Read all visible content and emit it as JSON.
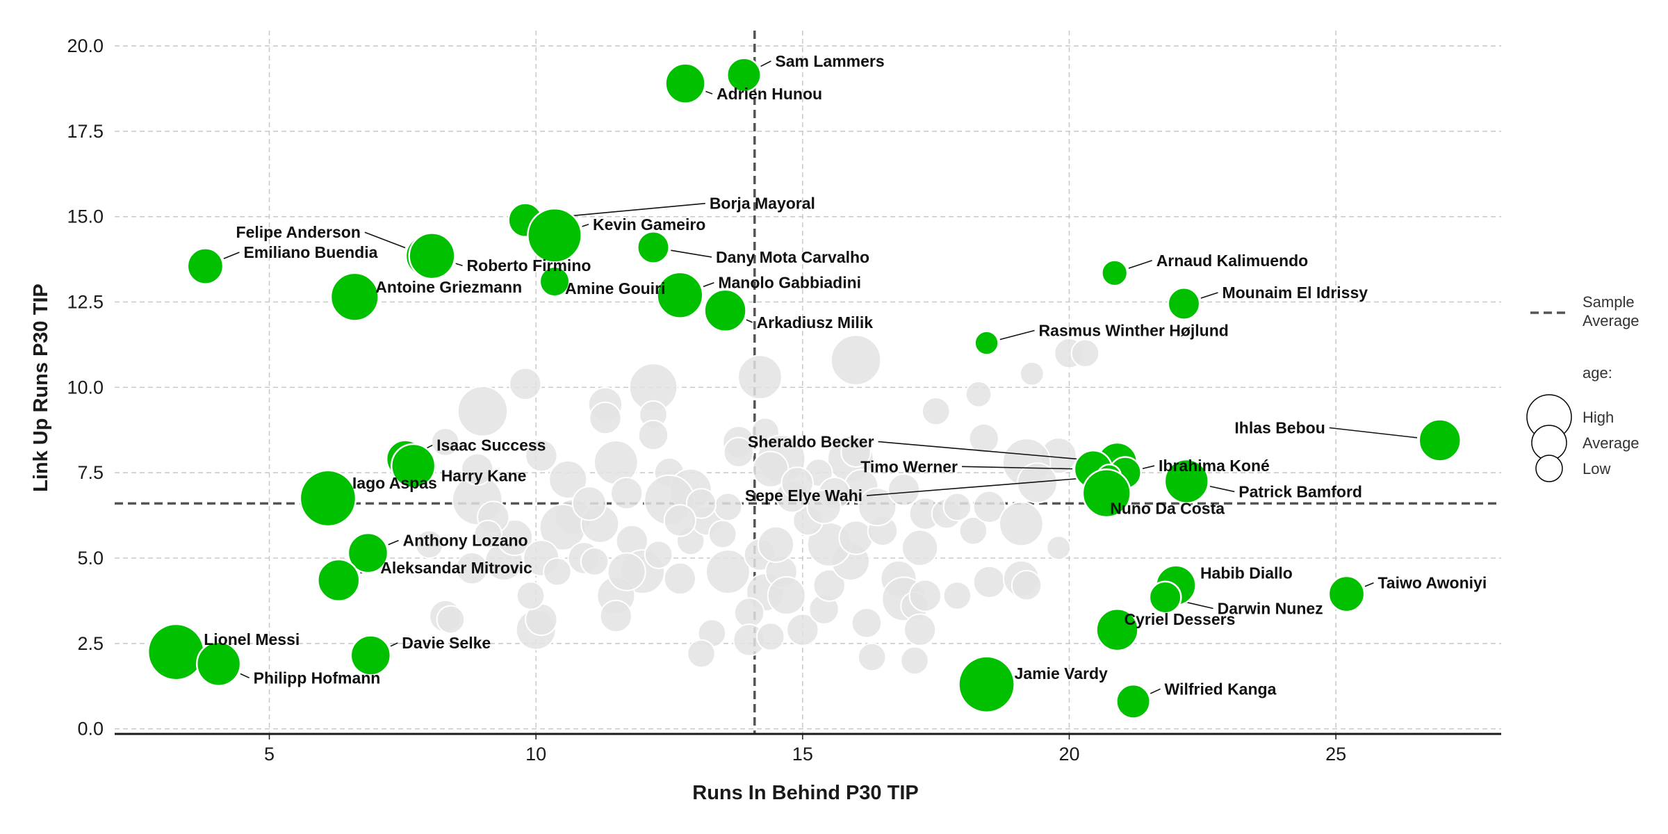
{
  "chart_data": {
    "type": "scatter",
    "xlabel": "Runs In Behind P30 TIP",
    "ylabel": "Link Up Runs P30 TIP",
    "xlim": [
      2.1,
      28.1
    ],
    "ylim": [
      -0.15,
      20.45
    ],
    "x_ticks": [
      5,
      10,
      15,
      20,
      25
    ],
    "y_ticks": [
      0.0,
      2.5,
      5.0,
      7.5,
      10.0,
      12.5,
      15.0,
      17.5,
      20.0
    ],
    "x_tick_labels": [
      "5",
      "10",
      "15",
      "20",
      "25"
    ],
    "y_tick_labels": [
      "0.0",
      "2.5",
      "5.0",
      "7.5",
      "10.0",
      "12.5",
      "15.0",
      "17.5",
      "20.0"
    ],
    "grid": true,
    "size_encoding": "age",
    "colors": {
      "highlight": "#00c000",
      "background": "#e3e3e3",
      "average_line": "#555555",
      "grid": "#c8c8c8"
    },
    "reference_lines": {
      "x_average": 14.1,
      "y_average": 6.6
    },
    "highlighted": [
      {
        "name": "Sam Lammers",
        "x": 13.9,
        "y": 19.15,
        "age": 25,
        "label_dx": 45,
        "label_dy": -20
      },
      {
        "name": "Adrien Hunou",
        "x": 12.8,
        "y": 18.9,
        "age": 28,
        "label_dx": 45,
        "label_dy": 15
      },
      {
        "name": "Borja Mayoral",
        "x": 9.8,
        "y": 14.9,
        "age": 25,
        "label_dx": 265,
        "label_dy": -24
      },
      {
        "name": "Kevin Gameiro",
        "x": 10.35,
        "y": 14.45,
        "age": 35,
        "label_dx": 55,
        "label_dy": -16
      },
      {
        "name": "Felipe Anderson",
        "x": 7.95,
        "y": 13.85,
        "age": 29,
        "label_dx": -95,
        "label_dy": -34
      },
      {
        "name": "Roberto Firmino",
        "x": 8.05,
        "y": 13.85,
        "age": 31,
        "label_dx": 50,
        "label_dy": 14
      },
      {
        "name": "Dany Mota Carvalho",
        "x": 12.2,
        "y": 14.1,
        "age": 24,
        "label_dx": 90,
        "label_dy": 14
      },
      {
        "name": "Emiliano Buendia",
        "x": 3.8,
        "y": 13.55,
        "age": 26,
        "label_dx": 55,
        "label_dy": -20
      },
      {
        "name": "Antoine Griezmann",
        "x": 6.6,
        "y": 12.65,
        "age": 32,
        "label_dx": 30,
        "label_dy": -14
      },
      {
        "name": "Amine Gouiri",
        "x": 10.35,
        "y": 13.1,
        "age": 23,
        "label_dx": 15,
        "label_dy": 10
      },
      {
        "name": "Manolo Gabbiadini",
        "x": 12.7,
        "y": 12.7,
        "age": 31,
        "label_dx": 55,
        "label_dy": -18
      },
      {
        "name": "Arkadiusz Milik",
        "x": 13.55,
        "y": 12.25,
        "age": 29,
        "label_dx": 45,
        "label_dy": 17
      },
      {
        "name": "Arnaud Kalimuendo",
        "x": 20.85,
        "y": 13.35,
        "age": 21,
        "label_dx": 60,
        "label_dy": -18
      },
      {
        "name": "Mounaim El Idrissy",
        "x": 22.15,
        "y": 12.45,
        "age": 24,
        "label_dx": 55,
        "label_dy": -16
      },
      {
        "name": "Rasmus Winther Højlund",
        "x": 18.45,
        "y": 11.3,
        "age": 20,
        "label_dx": 75,
        "label_dy": -18
      },
      {
        "name": "Ihlas Bebou",
        "x": 26.95,
        "y": 8.45,
        "age": 29,
        "label_dx": -165,
        "label_dy": -18
      },
      {
        "name": "Sheraldo Becker",
        "x": 20.9,
        "y": 7.8,
        "age": 28,
        "label_dx": -350,
        "label_dy": -30
      },
      {
        "name": "Timo Werner",
        "x": 20.45,
        "y": 7.6,
        "age": 27,
        "label_dx": -195,
        "label_dy": -4
      },
      {
        "name": "Ibrahima Koné",
        "x": 21.05,
        "y": 7.5,
        "age": 24,
        "label_dx": 48,
        "label_dy": -10
      },
      {
        "name": "Sepe Elye Wahi",
        "x": 20.75,
        "y": 7.4,
        "age": 20,
        "label_dx": -355,
        "label_dy": 28
      },
      {
        "name": "Patrick Bamford",
        "x": 22.2,
        "y": 7.25,
        "age": 30,
        "label_dx": 75,
        "label_dy": 15
      },
      {
        "name": "Nuno Da Costa",
        "x": 20.7,
        "y": 6.9,
        "age": 32,
        "label_dx": 5,
        "label_dy": 22
      },
      {
        "name": "Isaac Success",
        "x": 7.55,
        "y": 7.9,
        "age": 27,
        "label_dx": 45,
        "label_dy": -20
      },
      {
        "name": "Harry Kane",
        "x": 7.7,
        "y": 7.7,
        "age": 30,
        "label_dx": 40,
        "label_dy": 14
      },
      {
        "name": "Iago Aspas",
        "x": 6.1,
        "y": 6.75,
        "age": 36,
        "label_dx": 35,
        "label_dy": -22
      },
      {
        "name": "Anthony Lozano",
        "x": 6.85,
        "y": 5.15,
        "age": 28,
        "label_dx": 50,
        "label_dy": -18
      },
      {
        "name": "Aleksandar Mitrovic",
        "x": 6.3,
        "y": 4.35,
        "age": 29,
        "label_dx": 60,
        "label_dy": -18
      },
      {
        "name": "Habib Diallo",
        "x": 22.0,
        "y": 4.2,
        "age": 28,
        "label_dx": 35,
        "label_dy": -18
      },
      {
        "name": "Darwin Nunez",
        "x": 21.8,
        "y": 3.85,
        "age": 24,
        "label_dx": 75,
        "label_dy": 16
      },
      {
        "name": "Taiwo Awoniyi",
        "x": 25.2,
        "y": 3.95,
        "age": 26,
        "label_dx": 45,
        "label_dy": -16
      },
      {
        "name": "Cyriel Dessers",
        "x": 20.9,
        "y": 2.9,
        "age": 29,
        "label_dx": 10,
        "label_dy": -15
      },
      {
        "name": "Lionel Messi",
        "x": 3.25,
        "y": 2.25,
        "age": 36,
        "label_dx": 40,
        "label_dy": -18
      },
      {
        "name": "Philipp Hofmann",
        "x": 4.05,
        "y": 1.9,
        "age": 30,
        "label_dx": 50,
        "label_dy": 20
      },
      {
        "name": "Davie Selke",
        "x": 6.9,
        "y": 2.15,
        "age": 28,
        "label_dx": 45,
        "label_dy": -18
      },
      {
        "name": "Jamie Vardy",
        "x": 18.45,
        "y": 1.3,
        "age": 36,
        "label_dx": 40,
        "label_dy": -16
      },
      {
        "name": "Wilfried Kanga",
        "x": 21.2,
        "y": 0.8,
        "age": 25,
        "label_dx": 45,
        "label_dy": -18
      }
    ],
    "others": [
      {
        "x": 9.0,
        "y": 9.3,
        "age": 33
      },
      {
        "x": 9.8,
        "y": 10.1,
        "age": 24
      },
      {
        "x": 12.2,
        "y": 10.0,
        "age": 32
      },
      {
        "x": 14.2,
        "y": 10.3,
        "age": 30
      },
      {
        "x": 16.0,
        "y": 10.8,
        "age": 33
      },
      {
        "x": 12.2,
        "y": 9.2,
        "age": 22
      },
      {
        "x": 11.3,
        "y": 9.5,
        "age": 25
      },
      {
        "x": 11.3,
        "y": 9.1,
        "age": 24
      },
      {
        "x": 12.2,
        "y": 8.6,
        "age": 23
      },
      {
        "x": 13.8,
        "y": 8.4,
        "age": 24
      },
      {
        "x": 14.3,
        "y": 8.7,
        "age": 22
      },
      {
        "x": 14.6,
        "y": 7.9,
        "age": 32
      },
      {
        "x": 15.9,
        "y": 7.9,
        "age": 31
      },
      {
        "x": 16.0,
        "y": 8.1,
        "age": 23
      },
      {
        "x": 17.5,
        "y": 9.3,
        "age": 22
      },
      {
        "x": 18.3,
        "y": 9.8,
        "age": 21
      },
      {
        "x": 18.4,
        "y": 8.5,
        "age": 23
      },
      {
        "x": 19.3,
        "y": 10.4,
        "age": 20
      },
      {
        "x": 20.0,
        "y": 11.0,
        "age": 23
      },
      {
        "x": 20.3,
        "y": 11.0,
        "age": 22
      },
      {
        "x": 19.8,
        "y": 8.0,
        "age": 26
      },
      {
        "x": 19.2,
        "y": 7.8,
        "age": 32
      },
      {
        "x": 8.9,
        "y": 6.7,
        "age": 33
      },
      {
        "x": 8.9,
        "y": 7.6,
        "age": 24
      },
      {
        "x": 8.3,
        "y": 8.4,
        "age": 22
      },
      {
        "x": 10.1,
        "y": 8.0,
        "age": 24
      },
      {
        "x": 10.6,
        "y": 7.3,
        "age": 27
      },
      {
        "x": 11.5,
        "y": 7.8,
        "age": 30
      },
      {
        "x": 12.5,
        "y": 7.5,
        "age": 23
      },
      {
        "x": 12.9,
        "y": 7.0,
        "age": 29
      },
      {
        "x": 12.5,
        "y": 6.7,
        "age": 33
      },
      {
        "x": 11.7,
        "y": 6.9,
        "age": 24
      },
      {
        "x": 10.7,
        "y": 6.2,
        "age": 26
      },
      {
        "x": 10.5,
        "y": 5.9,
        "age": 31
      },
      {
        "x": 11.2,
        "y": 6.0,
        "age": 27
      },
      {
        "x": 11.8,
        "y": 5.5,
        "age": 24
      },
      {
        "x": 12.0,
        "y": 4.6,
        "age": 30
      },
      {
        "x": 11.5,
        "y": 3.9,
        "age": 27
      },
      {
        "x": 11.5,
        "y": 3.3,
        "age": 24
      },
      {
        "x": 10.0,
        "y": 2.9,
        "age": 28
      },
      {
        "x": 10.1,
        "y": 3.2,
        "age": 24
      },
      {
        "x": 9.9,
        "y": 3.9,
        "age": 22
      },
      {
        "x": 9.4,
        "y": 4.9,
        "age": 27
      },
      {
        "x": 9.6,
        "y": 5.6,
        "age": 26
      },
      {
        "x": 8.3,
        "y": 3.3,
        "age": 24
      },
      {
        "x": 8.4,
        "y": 3.2,
        "age": 22
      },
      {
        "x": 8.0,
        "y": 5.4,
        "age": 22
      },
      {
        "x": 12.7,
        "y": 4.4,
        "age": 24
      },
      {
        "x": 12.9,
        "y": 5.5,
        "age": 22
      },
      {
        "x": 13.2,
        "y": 6.1,
        "age": 23
      },
      {
        "x": 13.6,
        "y": 6.5,
        "age": 22
      },
      {
        "x": 13.5,
        "y": 5.7,
        "age": 22
      },
      {
        "x": 13.6,
        "y": 4.6,
        "age": 30
      },
      {
        "x": 14.2,
        "y": 5.1,
        "age": 24
      },
      {
        "x": 14.3,
        "y": 4.0,
        "age": 27
      },
      {
        "x": 14.6,
        "y": 4.6,
        "age": 24
      },
      {
        "x": 14.0,
        "y": 3.4,
        "age": 23
      },
      {
        "x": 14.0,
        "y": 2.6,
        "age": 24
      },
      {
        "x": 13.3,
        "y": 2.8,
        "age": 22
      },
      {
        "x": 13.1,
        "y": 2.2,
        "age": 22
      },
      {
        "x": 14.4,
        "y": 2.7,
        "age": 22
      },
      {
        "x": 14.7,
        "y": 3.9,
        "age": 27
      },
      {
        "x": 15.0,
        "y": 2.9,
        "age": 24
      },
      {
        "x": 15.4,
        "y": 3.5,
        "age": 23
      },
      {
        "x": 15.5,
        "y": 4.2,
        "age": 24
      },
      {
        "x": 15.9,
        "y": 4.9,
        "age": 27
      },
      {
        "x": 15.5,
        "y": 5.4,
        "age": 30
      },
      {
        "x": 16.0,
        "y": 5.6,
        "age": 25
      },
      {
        "x": 16.5,
        "y": 5.8,
        "age": 23
      },
      {
        "x": 16.8,
        "y": 4.4,
        "age": 26
      },
      {
        "x": 16.9,
        "y": 3.8,
        "age": 30
      },
      {
        "x": 17.1,
        "y": 3.6,
        "age": 22
      },
      {
        "x": 17.2,
        "y": 2.9,
        "age": 24
      },
      {
        "x": 17.1,
        "y": 2.0,
        "age": 22
      },
      {
        "x": 16.3,
        "y": 2.1,
        "age": 22
      },
      {
        "x": 16.2,
        "y": 3.1,
        "age": 23
      },
      {
        "x": 17.3,
        "y": 3.9,
        "age": 24
      },
      {
        "x": 17.9,
        "y": 3.9,
        "age": 22
      },
      {
        "x": 17.2,
        "y": 5.3,
        "age": 26
      },
      {
        "x": 17.3,
        "y": 6.3,
        "age": 24
      },
      {
        "x": 17.7,
        "y": 6.3,
        "age": 23
      },
      {
        "x": 17.9,
        "y": 6.5,
        "age": 22
      },
      {
        "x": 18.2,
        "y": 5.8,
        "age": 22
      },
      {
        "x": 18.5,
        "y": 6.5,
        "age": 24
      },
      {
        "x": 18.5,
        "y": 4.3,
        "age": 24
      },
      {
        "x": 19.1,
        "y": 4.4,
        "age": 26
      },
      {
        "x": 19.2,
        "y": 4.2,
        "age": 23
      },
      {
        "x": 19.8,
        "y": 5.3,
        "age": 20
      },
      {
        "x": 19.1,
        "y": 6.0,
        "age": 30
      },
      {
        "x": 19.4,
        "y": 7.2,
        "age": 28
      },
      {
        "x": 16.1,
        "y": 7.1,
        "age": 25
      },
      {
        "x": 15.3,
        "y": 7.5,
        "age": 22
      },
      {
        "x": 15.1,
        "y": 6.1,
        "age": 23
      },
      {
        "x": 14.8,
        "y": 6.8,
        "age": 24
      },
      {
        "x": 14.4,
        "y": 7.6,
        "age": 26
      },
      {
        "x": 14.5,
        "y": 5.4,
        "age": 26
      },
      {
        "x": 10.1,
        "y": 5.0,
        "age": 26
      },
      {
        "x": 10.4,
        "y": 4.6,
        "age": 22
      },
      {
        "x": 10.9,
        "y": 5.0,
        "age": 24
      },
      {
        "x": 11.1,
        "y": 4.9,
        "age": 22
      },
      {
        "x": 11.7,
        "y": 4.6,
        "age": 27
      },
      {
        "x": 12.3,
        "y": 5.1,
        "age": 22
      },
      {
        "x": 9.2,
        "y": 6.2,
        "age": 24
      },
      {
        "x": 9.1,
        "y": 5.7,
        "age": 22
      },
      {
        "x": 8.8,
        "y": 4.7,
        "age": 24
      },
      {
        "x": 15.6,
        "y": 6.9,
        "age": 24
      },
      {
        "x": 16.4,
        "y": 6.5,
        "age": 27
      },
      {
        "x": 16.9,
        "y": 7.0,
        "age": 24
      },
      {
        "x": 13.1,
        "y": 6.6,
        "age": 23
      },
      {
        "x": 12.7,
        "y": 6.1,
        "age": 24
      },
      {
        "x": 11.0,
        "y": 6.6,
        "age": 25
      },
      {
        "x": 13.8,
        "y": 8.1,
        "age": 23
      },
      {
        "x": 14.9,
        "y": 7.2,
        "age": 24
      },
      {
        "x": 15.4,
        "y": 6.5,
        "age": 25
      }
    ]
  },
  "legend": {
    "average_label_line1": "Sample",
    "average_label_line2": "Average",
    "size_title": "age:",
    "size_high": "High",
    "size_average": "Average",
    "size_low": "Low"
  }
}
